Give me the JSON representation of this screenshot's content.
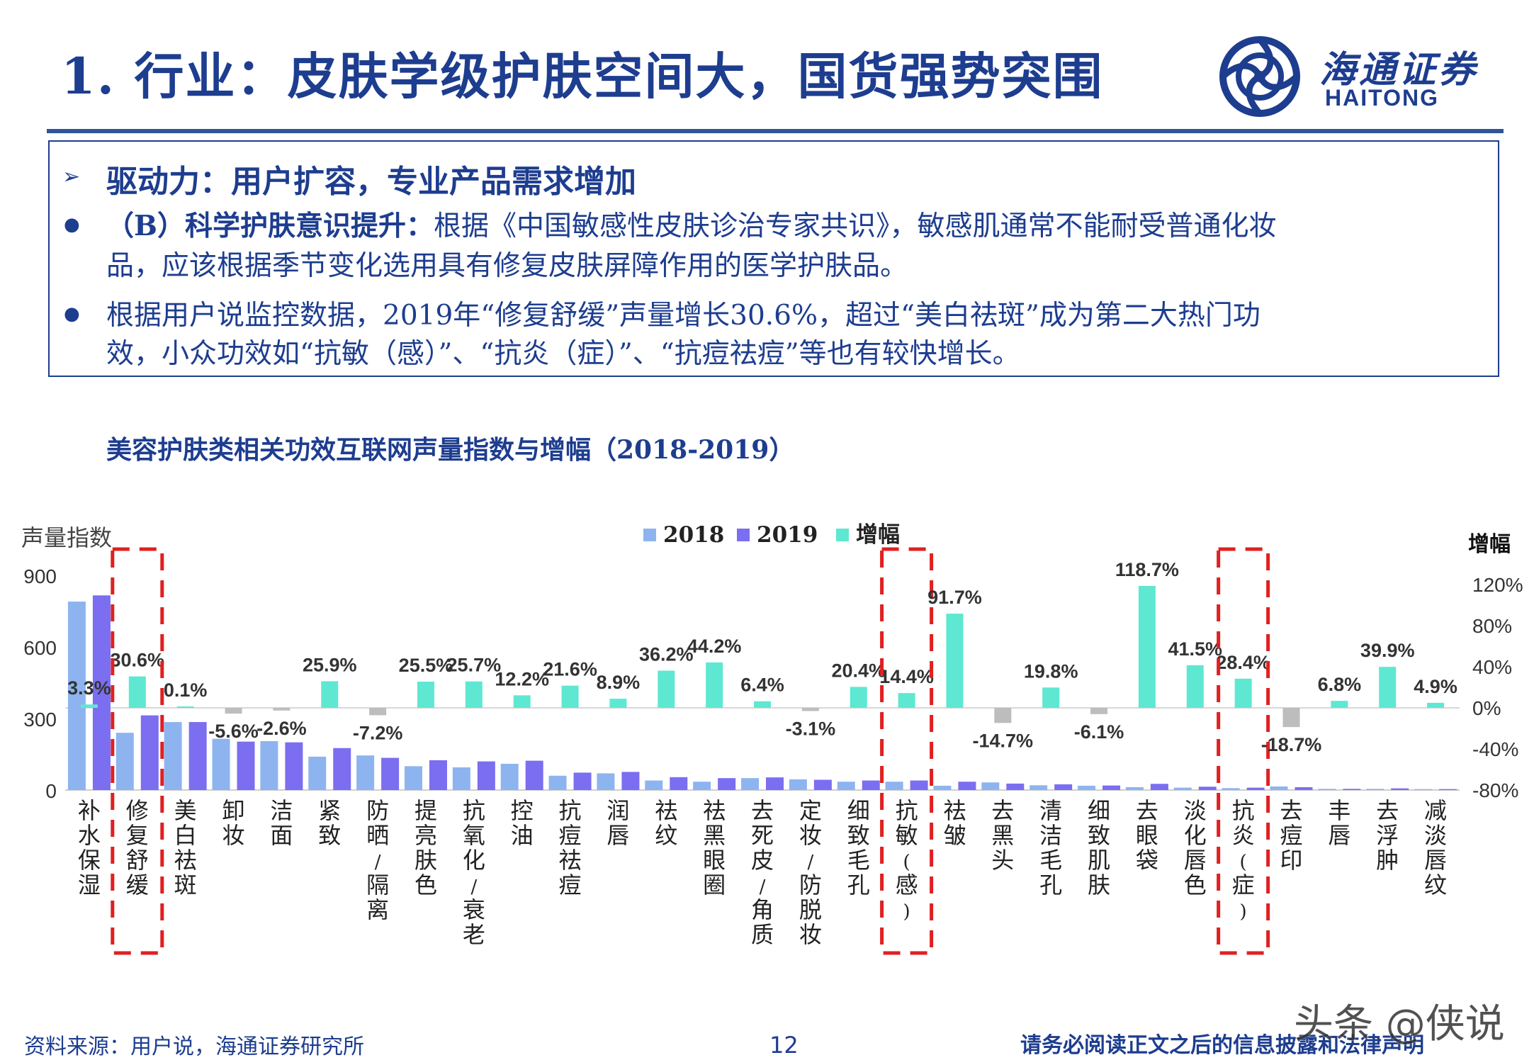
{
  "header": {
    "title": "1. 行业：皮肤学级护肤空间大，国货强势突围",
    "logo_cn": "海通证券",
    "logo_en": "HAITONG"
  },
  "summary": {
    "driver": "驱动力：用户扩容，专业产品需求增加",
    "p1_bold": "（B）科学护肤意识提升：",
    "p1_line1": "根据《中国敏感性皮肤诊治专家共识》，敏感肌通常不能耐受普通化妆",
    "p1_line2": "品，应该根据季节变化选用具有修复皮肤屏障作用的医学护肤品。",
    "p2_line1": "根据用户说监控数据，2019年“修复舒缓”声量增长30.6%，超过“美白祛斑”成为第二大热门功",
    "p2_line2": "效，小众功效如“抗敏（感）”、“抗炎（症）”、“抗痘祛痘”等也有较快增长。"
  },
  "chart_caption": "美容护肤类相关功效互联网声量指数与增幅（2018-2019）",
  "chart_data": {
    "type": "bar",
    "title": "",
    "ylabel": "声量指数",
    "y2label": "增幅",
    "ylim": [
      0,
      900
    ],
    "y_ticks": [
      "0",
      "300",
      "600",
      "900"
    ],
    "y2lim": [
      -80,
      120
    ],
    "y2_ticks": [
      "-80%",
      "-40%",
      "0%",
      "40%",
      "80%",
      "120%"
    ],
    "legend": [
      "2018",
      "2019",
      "增幅"
    ],
    "legend_position": "top",
    "colors": {
      "2018": "#8eb4f0",
      "2019": "#7b6ef0",
      "增幅": "#5ee8d2",
      "negative": "#bdbdbd",
      "highlight": "#e02020"
    },
    "categories": [
      "补水保湿",
      "修复舒缓",
      "美白祛斑",
      "卸妆",
      "洁面",
      "紧致",
      "防晒/隔离",
      "提亮肤色",
      "抗氧化/衰老",
      "控油",
      "抗痘祛痘",
      "润唇",
      "祛纹",
      "祛黑眼圈",
      "去死皮/角质",
      "定妆/防脱妆",
      "细致毛孔",
      "抗敏(感)",
      "祛皱",
      "去黑头",
      "清洁毛孔",
      "细致肌肤",
      "去眼袋",
      "淡化唇色",
      "抗炎(症)",
      "去痘印",
      "丰唇",
      "去浮肿",
      "减淡唇纹"
    ],
    "series": [
      {
        "name": "2018",
        "values": [
          790,
          240,
          285,
          215,
          205,
          140,
          145,
          100,
          95,
          110,
          60,
          70,
          40,
          35,
          50,
          45,
          35,
          35,
          18,
          32,
          20,
          18,
          12,
          10,
          8,
          15,
          5,
          5,
          4
        ]
      },
      {
        "name": "2019",
        "values": [
          816,
          313,
          285,
          203,
          200,
          176,
          135,
          125,
          120,
          123,
          73,
          76,
          54,
          50,
          53,
          43,
          40,
          40,
          35,
          27,
          24,
          19,
          26,
          14,
          10,
          12,
          5,
          7,
          4
        ]
      },
      {
        "name": "增幅",
        "values": [
          3.3,
          30.6,
          0.1,
          -5.6,
          -2.6,
          25.9,
          -7.2,
          25.5,
          25.7,
          12.2,
          21.6,
          8.9,
          36.2,
          44.2,
          6.4,
          -3.1,
          20.4,
          14.4,
          91.7,
          -14.7,
          19.8,
          -6.1,
          118.7,
          41.5,
          28.4,
          -18.7,
          6.8,
          39.9,
          4.9
        ]
      }
    ],
    "growth_labels": [
      "3.3%",
      "30.6%",
      "0.1%",
      "-5.6%",
      "-2.6%",
      "25.9%",
      "-7.2%",
      "25.5%",
      "25.7%",
      "12.2%",
      "21.6%",
      "8.9%",
      "36.2%",
      "44.2%",
      "6.4%",
      "-3.1%",
      "20.4%",
      "14.4%",
      "91.7%",
      "-14.7%",
      "19.8%",
      "-6.1%",
      "118.7%",
      "41.5%",
      "28.4%",
      "-18.7%",
      "6.8%",
      "39.9%",
      "4.9%"
    ],
    "highlighted": [
      "修复舒缓",
      "抗敏(感)",
      "抗炎(症)"
    ]
  },
  "footer": {
    "source": "资料来源：用户说，海通证券研究所",
    "page": "12",
    "disclaimer": "请务必阅读正文之后的信息披露和法律声明",
    "watermark": "头条 @侠说"
  }
}
